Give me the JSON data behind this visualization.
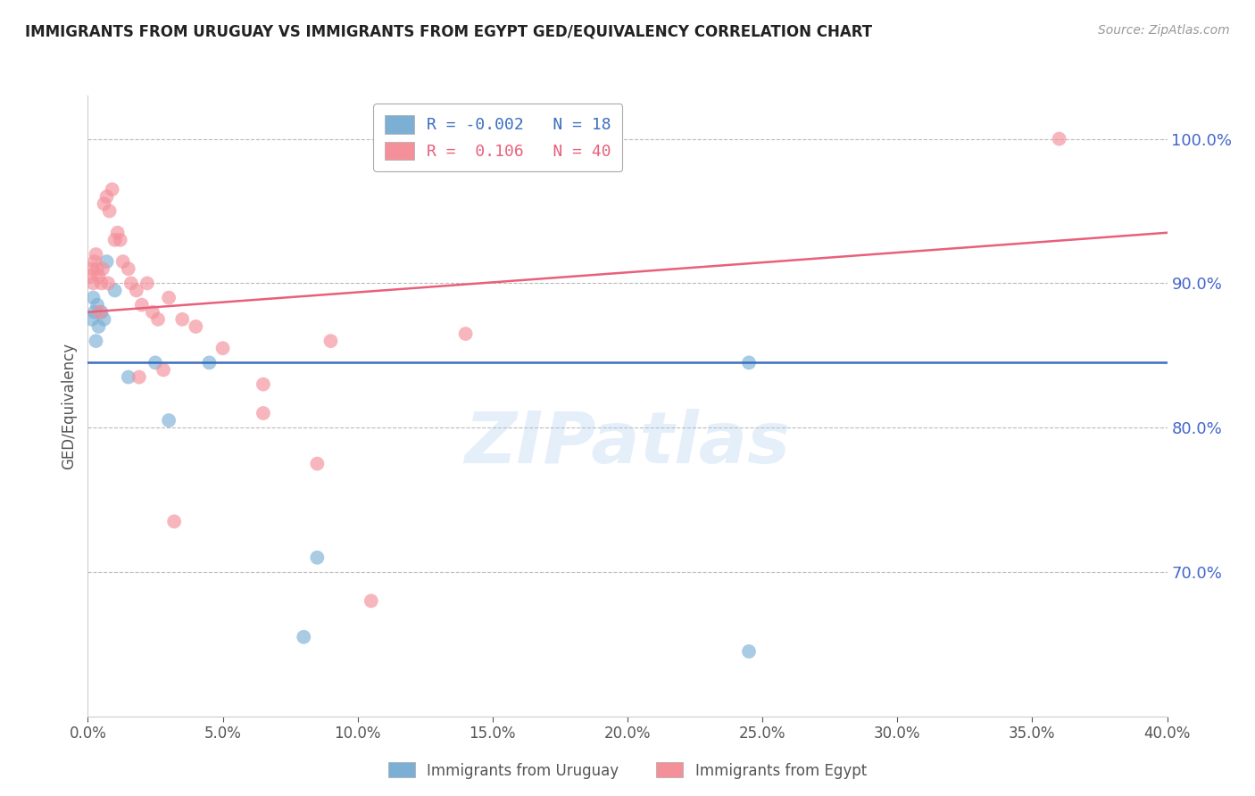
{
  "title": "IMMIGRANTS FROM URUGUAY VS IMMIGRANTS FROM EGYPT GED/EQUIVALENCY CORRELATION CHART",
  "source": "Source: ZipAtlas.com",
  "ylabel": "GED/Equivalency",
  "legend_label_blue": "Immigrants from Uruguay",
  "legend_label_pink": "Immigrants from Egypt",
  "R_blue": -0.002,
  "N_blue": 18,
  "R_pink": 0.106,
  "N_pink": 40,
  "xmin": 0.0,
  "xmax": 40.0,
  "ymin": 60.0,
  "ymax": 103.0,
  "yticks": [
    70.0,
    80.0,
    90.0,
    100.0
  ],
  "xticks": [
    0.0,
    5.0,
    10.0,
    15.0,
    20.0,
    25.0,
    30.0,
    35.0,
    40.0
  ],
  "color_blue": "#7BAFD4",
  "color_pink": "#F4909A",
  "color_trendline_blue": "#3A6EBF",
  "color_trendline_pink": "#E8607A",
  "color_axis_right": "#4466CC",
  "trendline_blue_y0": 84.5,
  "trendline_blue_y1": 84.5,
  "trendline_pink_y0": 88.0,
  "trendline_pink_y1": 93.5,
  "blue_scatter_x": [
    0.15,
    0.2,
    0.25,
    0.3,
    0.35,
    0.4,
    0.5,
    0.6,
    0.7,
    1.0,
    1.5,
    2.5,
    4.5,
    8.5,
    24.5,
    24.5,
    8.0,
    3.0
  ],
  "blue_scatter_y": [
    87.5,
    89.0,
    88.0,
    86.0,
    88.5,
    87.0,
    88.0,
    87.5,
    91.5,
    89.5,
    83.5,
    84.5,
    84.5,
    71.0,
    84.5,
    64.5,
    65.5,
    80.5
  ],
  "pink_scatter_x": [
    0.1,
    0.15,
    0.2,
    0.25,
    0.3,
    0.35,
    0.4,
    0.5,
    0.55,
    0.6,
    0.7,
    0.8,
    0.9,
    1.0,
    1.1,
    1.2,
    1.3,
    1.5,
    1.6,
    1.8,
    2.0,
    2.2,
    2.4,
    2.6,
    2.8,
    3.0,
    3.5,
    4.0,
    5.0,
    6.5,
    6.5,
    8.5,
    10.5,
    9.0,
    14.0,
    36.0,
    0.45,
    0.75,
    1.9,
    3.2
  ],
  "pink_scatter_y": [
    90.5,
    91.0,
    90.0,
    91.5,
    92.0,
    91.0,
    90.5,
    90.0,
    91.0,
    95.5,
    96.0,
    95.0,
    96.5,
    93.0,
    93.5,
    93.0,
    91.5,
    91.0,
    90.0,
    89.5,
    88.5,
    90.0,
    88.0,
    87.5,
    84.0,
    89.0,
    87.5,
    87.0,
    85.5,
    83.0,
    81.0,
    77.5,
    68.0,
    86.0,
    86.5,
    100.0,
    88.0,
    90.0,
    83.5,
    73.5
  ],
  "watermark": "ZIPatlas",
  "background_color": "#ffffff",
  "grid_color": "#bbbbbb"
}
